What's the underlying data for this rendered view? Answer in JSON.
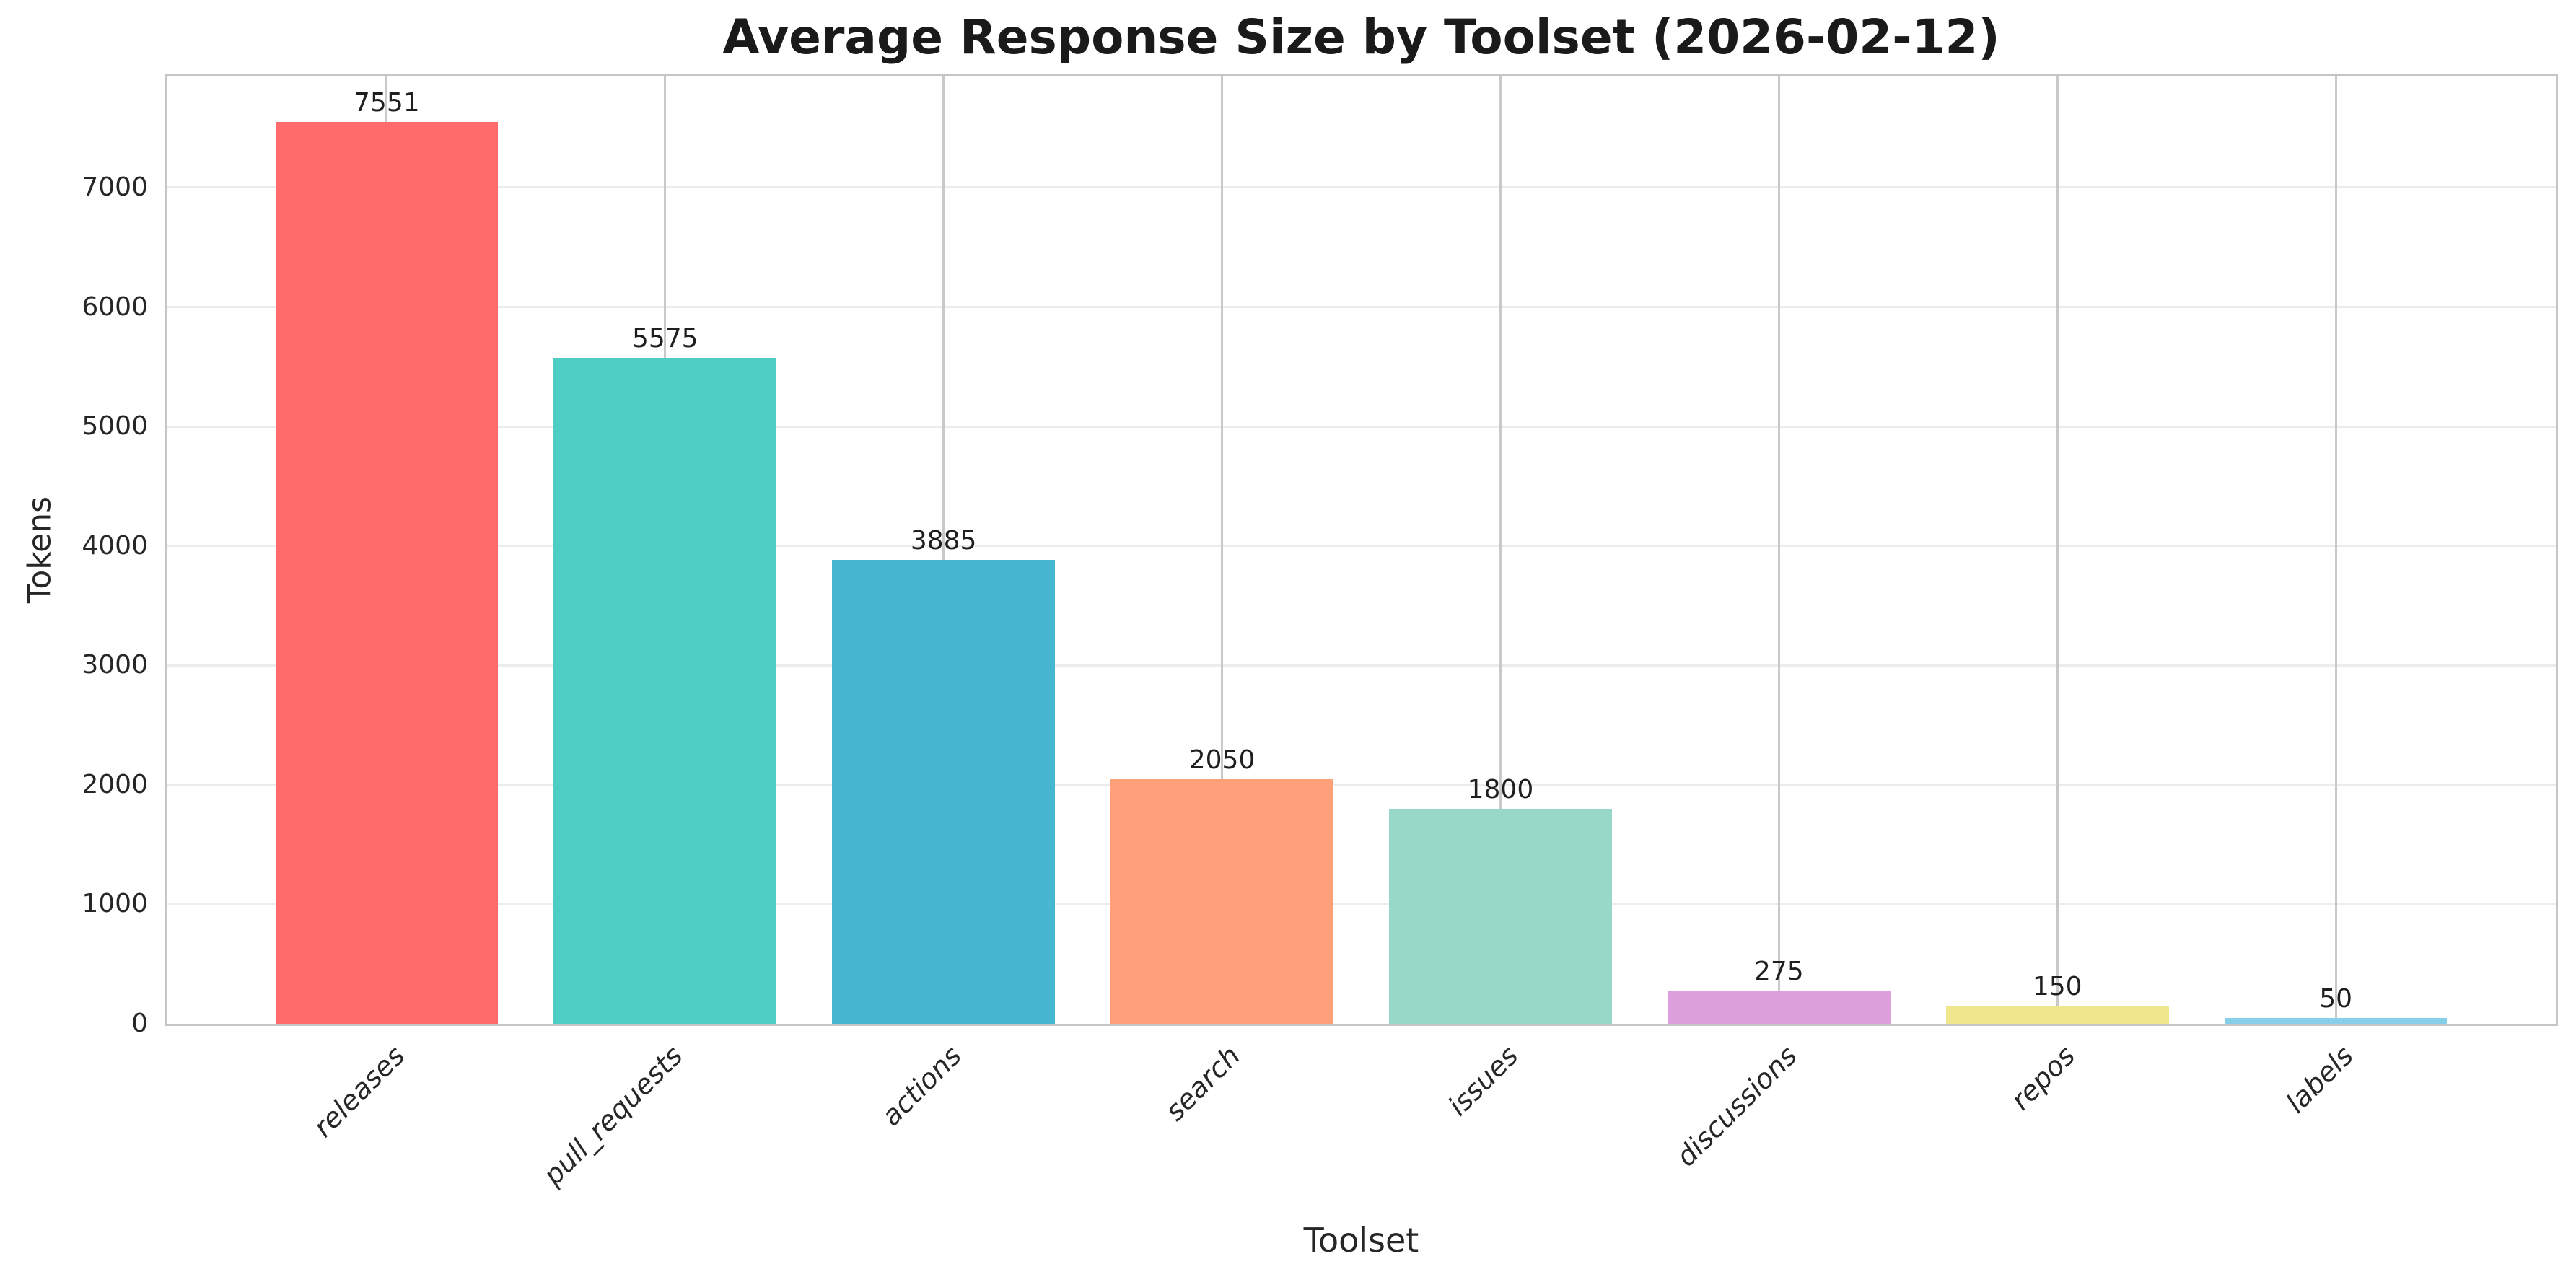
{
  "figure": {
    "background": "#ffffff",
    "plot_background": "#ffffff",
    "spine_color": "#c6c6c6",
    "grid_color_horizontal": "#ececec",
    "grid_color_vertical": "#c9c9c9",
    "text_color": "#262626",
    "title_color": "#1a1a1a"
  },
  "chart_data": {
    "type": "bar",
    "title": "Average Response Size by Toolset (2026-02-12)",
    "xlabel": "Toolset",
    "ylabel": "Tokens",
    "categories": [
      "releases",
      "pull_requests",
      "actions",
      "search",
      "issues",
      "discussions",
      "repos",
      "labels"
    ],
    "values": [
      7551,
      5575,
      3885,
      2050,
      1800,
      275,
      150,
      50
    ],
    "bar_colors": [
      "#FF6B6B",
      "#4ECDC4",
      "#45B7D1",
      "#FFA07A",
      "#98D8C8",
      "#DDA0DD",
      "#F0E68C",
      "#87CEEB"
    ],
    "ylim": [
      0,
      7930
    ],
    "yticks": [
      0,
      1000,
      2000,
      3000,
      4000,
      5000,
      6000,
      7000
    ],
    "grid": "both",
    "legend": "none",
    "value_labels": true,
    "x_tick_rotation_deg": 45,
    "x_tick_style": "italic",
    "bar_width_fraction": 0.8
  }
}
